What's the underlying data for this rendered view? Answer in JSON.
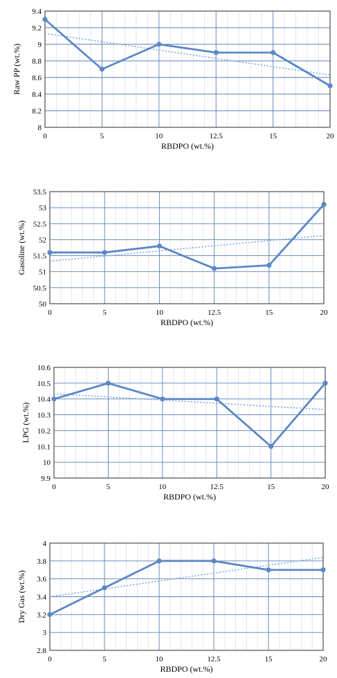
{
  "chart_data": [
    {
      "type": "line",
      "xlabel": "RBDPO (wt.%)",
      "ylabel": "Raw PP (wt.%)",
      "categories": [
        "0",
        "5",
        "10",
        "12.5",
        "15",
        "20"
      ],
      "values": [
        9.3,
        8.7,
        9.0,
        8.9,
        8.9,
        8.5
      ],
      "trendline": [
        9.13,
        8.63
      ],
      "ylim": [
        8,
        9.4
      ],
      "yticks": [
        "8",
        "8.2",
        "8.4",
        "8.6",
        "8.8",
        "9",
        "9.2",
        "9.4"
      ],
      "grid": true
    },
    {
      "type": "line",
      "xlabel": "RBDPO (wt.%)",
      "ylabel": "Gasoline (wt.%)",
      "categories": [
        "0",
        "5",
        "10",
        "12.5",
        "15",
        "20"
      ],
      "values": [
        51.6,
        51.6,
        51.8,
        51.1,
        51.2,
        53.1
      ],
      "trendline": [
        51.33,
        52.13
      ],
      "ylim": [
        50,
        53.5
      ],
      "yticks": [
        "50",
        "50.5",
        "51",
        "51.5",
        "52",
        "52.5",
        "53",
        "53.5"
      ],
      "grid": true
    },
    {
      "type": "line",
      "xlabel": "RBDPO (wt.%)",
      "ylabel": "LPG (wt.%)",
      "categories": [
        "0",
        "5",
        "10",
        "12.5",
        "15",
        "20"
      ],
      "values": [
        10.4,
        10.5,
        10.4,
        10.4,
        10.1,
        10.5
      ],
      "trendline": [
        10.433,
        10.333
      ],
      "ylim": [
        9.9,
        10.6
      ],
      "yticks": [
        "9.9",
        "10",
        "10.1",
        "10.2",
        "10.3",
        "10.4",
        "10.5",
        "10.6"
      ],
      "grid": true
    },
    {
      "type": "line",
      "xlabel": "RBDPO (wt.%)",
      "ylabel": "Dry Gas (wt.%)",
      "categories": [
        "0",
        "5",
        "10",
        "12.5",
        "15",
        "20"
      ],
      "values": [
        3.2,
        3.5,
        3.8,
        3.8,
        3.7,
        3.7
      ],
      "trendline": [
        3.4,
        3.84
      ],
      "ylim": [
        2.8,
        4.0
      ],
      "yticks": [
        "2.8",
        "3",
        "3.2",
        "3.4",
        "3.6",
        "3.8",
        "4"
      ],
      "grid": true
    }
  ],
  "colors": {
    "line": "#5b87c5",
    "trend": "#7fa6d9",
    "grid_major": "#5a7fb5",
    "grid_minor": "#d8e1ee",
    "frame": "#4d4d4d"
  }
}
